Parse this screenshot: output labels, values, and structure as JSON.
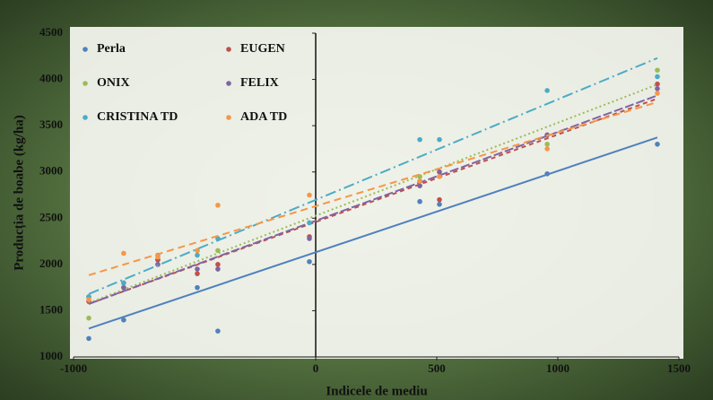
{
  "chart_data": {
    "type": "scatter",
    "x_label": "Indicele de mediu",
    "y_label": "Producția de boabe (kg/ha)",
    "x": [
      -937,
      -793,
      -652,
      -489,
      -404,
      -26,
      430,
      511,
      956,
      1411
    ],
    "series": [
      {
        "name": "Perla",
        "color": "#4f81bd",
        "dash": "none",
        "values": [
          1200,
          1400,
          2050,
          1750,
          1280,
          2030,
          2680,
          2650,
          2980,
          3300
        ]
      },
      {
        "name": "EUGEN",
        "color": "#c0504d",
        "dash": "5,4",
        "values": [
          1600,
          1800,
          2050,
          1900,
          2000,
          2300,
          2900,
          2700,
          3400,
          3950
        ]
      },
      {
        "name": "ONIX",
        "color": "#9bbb59",
        "dash": "2,3",
        "values": [
          1420,
          1750,
          2000,
          2150,
          2150,
          2450,
          2950,
          3000,
          3300,
          4100
        ]
      },
      {
        "name": "FELIX",
        "color": "#8064a2",
        "dash": "10,3",
        "values": [
          1650,
          1750,
          2000,
          1950,
          1950,
          2280,
          2850,
          3000,
          3400,
          3900
        ]
      },
      {
        "name": "CRISTINA TD",
        "color": "#4bacc6",
        "dash": "12,4,2,4",
        "values": [
          1650,
          1800,
          2100,
          2100,
          2280,
          2450,
          3350,
          3350,
          3880,
          4030
        ]
      },
      {
        "name": "ADA TD",
        "color": "#f79646",
        "dash": "8,5",
        "values": [
          1620,
          2120,
          2080,
          2150,
          2640,
          2750,
          2900,
          2950,
          3250,
          3850
        ]
      }
    ],
    "xlim": [
      -1000,
      1500
    ],
    "xticks": [
      -1000,
      0,
      500,
      1000,
      1500
    ],
    "ylim": [
      1000,
      4500
    ],
    "yticks": [
      1000,
      1500,
      2000,
      2500,
      3000,
      3500,
      4000,
      4500
    ],
    "trendline": "linear",
    "legend": "top-left"
  }
}
